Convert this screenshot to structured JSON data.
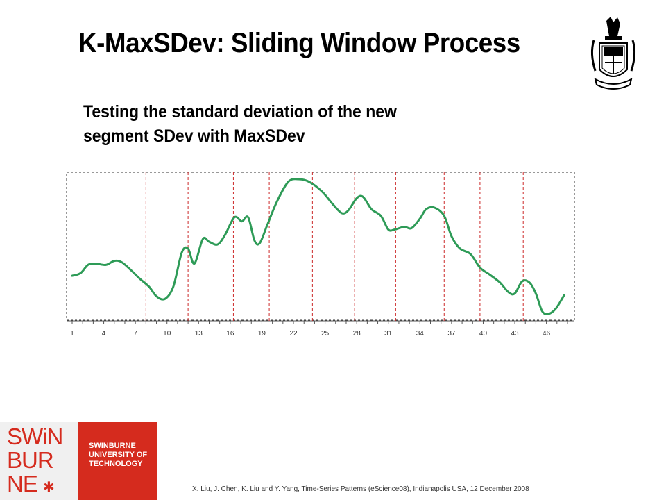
{
  "slide": {
    "title": "K-MaxSDev: Sliding Window Process",
    "subtitle_line1": "Testing the standard deviation of the new",
    "subtitle_line2": "segment SDev with MaxSDev",
    "footer": "X. Liu, J. Chen, K. Liu and Y. Yang, Time-Series Patterns (eScience08), Indianapolis USA, 12 December 2008"
  },
  "logo": {
    "swin_line1": "SWiN",
    "swin_line2": "BUR",
    "swin_line3": "NE",
    "text_line1": "SWINBURNE",
    "text_line2": "UNIVERSITY OF",
    "text_line3": "TECHNOLOGY"
  },
  "colors": {
    "line": "#2e9b57",
    "divider": "#cc2a2a",
    "brand_red": "#d52b1e"
  },
  "chart_data": {
    "type": "line",
    "x_tick_labels": [
      "1",
      "4",
      "7",
      "10",
      "13",
      "16",
      "19",
      "22",
      "25",
      "28",
      "31",
      "34",
      "37",
      "40",
      "43",
      "46"
    ],
    "xlim": [
      1,
      48
    ],
    "ylim": [
      0,
      100
    ],
    "grid": false,
    "series": [
      {
        "values": [
          [
            1.0,
            28
          ],
          [
            1.8,
            30
          ],
          [
            2.5,
            36
          ],
          [
            3.2,
            37
          ],
          [
            4.2,
            36
          ],
          [
            5.0,
            39
          ],
          [
            5.7,
            38
          ],
          [
            6.6,
            32
          ],
          [
            7.4,
            26
          ],
          [
            8.3,
            20
          ],
          [
            9.0,
            13
          ],
          [
            9.8,
            11
          ],
          [
            10.6,
            20
          ],
          [
            11.4,
            45
          ],
          [
            12.0,
            48
          ],
          [
            12.6,
            37
          ],
          [
            13.4,
            55
          ],
          [
            14.0,
            53
          ],
          [
            14.8,
            51
          ],
          [
            15.5,
            58
          ],
          [
            16.4,
            71
          ],
          [
            17.1,
            68
          ],
          [
            17.7,
            71
          ],
          [
            18.3,
            54
          ],
          [
            18.8,
            52
          ],
          [
            19.5,
            65
          ],
          [
            20.4,
            82
          ],
          [
            21.5,
            97
          ],
          [
            22.5,
            99
          ],
          [
            23.5,
            97
          ],
          [
            24.7,
            90
          ],
          [
            25.8,
            80
          ],
          [
            26.6,
            74
          ],
          [
            27.2,
            76
          ],
          [
            28.0,
            85
          ],
          [
            28.6,
            86
          ],
          [
            29.4,
            77
          ],
          [
            30.3,
            72
          ],
          [
            31.0,
            62
          ],
          [
            31.6,
            62
          ],
          [
            32.5,
            64
          ],
          [
            33.2,
            63
          ],
          [
            34.0,
            70
          ],
          [
            34.6,
            77
          ],
          [
            35.4,
            78
          ],
          [
            36.3,
            72
          ],
          [
            37.0,
            57
          ],
          [
            37.8,
            48
          ],
          [
            38.8,
            44
          ],
          [
            39.7,
            34
          ],
          [
            40.6,
            29
          ],
          [
            41.6,
            23
          ],
          [
            42.4,
            16
          ],
          [
            43.0,
            15
          ],
          [
            43.7,
            24
          ],
          [
            44.4,
            23
          ],
          [
            45.0,
            15
          ],
          [
            45.6,
            2
          ],
          [
            46.2,
            0
          ],
          [
            46.9,
            4
          ],
          [
            47.7,
            14
          ]
        ]
      }
    ],
    "window_boundaries": [
      8,
      12,
      16.3,
      19.7,
      23.8,
      27.8,
      31.7,
      36.3,
      39.7,
      43.8
    ]
  }
}
